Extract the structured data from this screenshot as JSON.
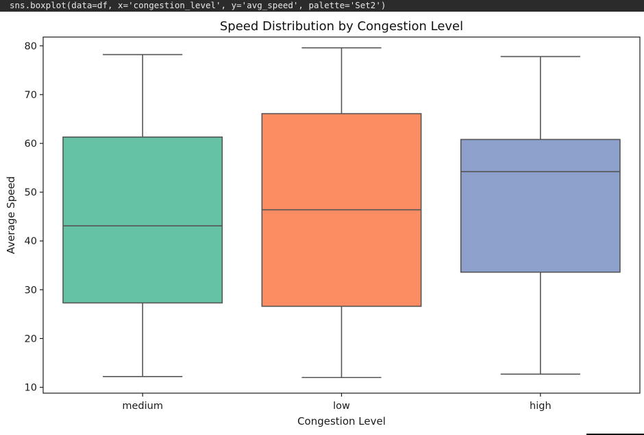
{
  "code_line": "sns.boxplot(data=df, x='congestion_level', y='avg_speed', palette='Set2')",
  "chart_data": {
    "type": "box",
    "title": "Speed Distribution by Congestion Level",
    "xlabel": "Congestion Level",
    "ylabel": "Average Speed",
    "ylim": [
      8.8,
      81.8
    ],
    "yticks": [
      10,
      20,
      30,
      40,
      50,
      60,
      70,
      80
    ],
    "grid": false,
    "categories": [
      "medium",
      "low",
      "high"
    ],
    "boxes": [
      {
        "category": "medium",
        "whisker_low": 12.2,
        "q1": 27.3,
        "median": 43.1,
        "q3": 61.3,
        "whisker_high": 78.2,
        "color": "#66c2a5"
      },
      {
        "category": "low",
        "whisker_low": 12.0,
        "q1": 26.6,
        "median": 46.4,
        "q3": 66.1,
        "whisker_high": 79.6,
        "color": "#fc8d62"
      },
      {
        "category": "high",
        "whisker_low": 12.7,
        "q1": 33.6,
        "median": 54.2,
        "q3": 60.8,
        "whisker_high": 77.8,
        "color": "#8da0cb"
      }
    ]
  }
}
